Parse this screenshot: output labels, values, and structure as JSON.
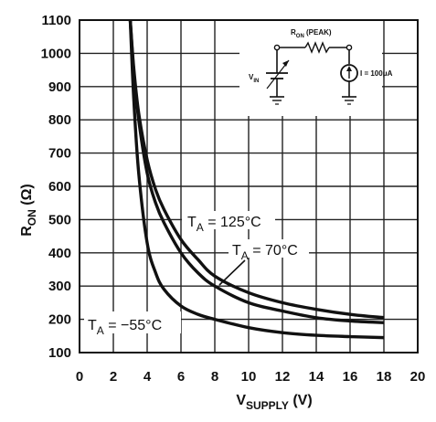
{
  "chart_data": {
    "type": "line",
    "title": "",
    "xlabel": "V_SUPPLY (V)",
    "ylabel": "R_ON (Ω)",
    "xlim": [
      0,
      20
    ],
    "ylim": [
      100,
      1100
    ],
    "x_ticks": [
      "0",
      "2",
      "4",
      "6",
      "8",
      "10",
      "12",
      "14",
      "16",
      "18",
      "20"
    ],
    "y_ticks": [
      "100",
      "200",
      "300",
      "400",
      "500",
      "600",
      "700",
      "800",
      "900",
      "1000",
      "1100"
    ],
    "grid": true,
    "series": [
      {
        "name": "T_A = 125°C",
        "x": [
          3.0,
          3.2,
          3.5,
          4,
          4.5,
          5,
          6,
          7,
          8,
          10,
          12,
          14,
          16,
          18
        ],
        "y": [
          1100,
          960,
          820,
          680,
          590,
          530,
          440,
          380,
          330,
          280,
          250,
          230,
          215,
          205
        ]
      },
      {
        "name": "T_A = 70°C",
        "x": [
          3.0,
          3.2,
          3.5,
          4,
          4.5,
          5,
          6,
          7,
          8,
          10,
          12,
          14,
          16,
          18
        ],
        "y": [
          1100,
          950,
          800,
          640,
          550,
          490,
          400,
          340,
          300,
          250,
          225,
          205,
          195,
          190
        ]
      },
      {
        "name": "T_A = −55°C",
        "x": [
          3.0,
          3.2,
          3.5,
          4,
          4.5,
          5,
          6,
          7,
          8,
          10,
          12,
          14,
          16,
          18
        ],
        "y": [
          1100,
          870,
          640,
          430,
          340,
          290,
          240,
          215,
          200,
          175,
          160,
          152,
          148,
          145
        ]
      }
    ],
    "inset": {
      "ron_label": "R_ON (PEAK)",
      "vin_label": "V_IN",
      "current_label": "I = 100μA"
    }
  }
}
